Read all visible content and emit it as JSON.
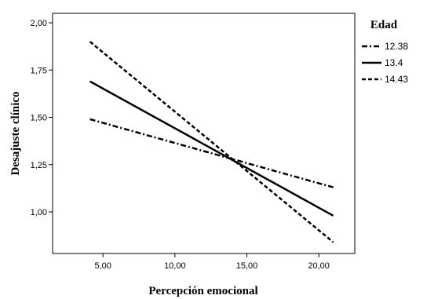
{
  "chart_data": {
    "type": "line",
    "xlabel": "Percepción emocional",
    "ylabel": "Desajuste clínico",
    "xlim": [
      1.5,
      22.5
    ],
    "ylim": [
      0.78,
      2.05
    ],
    "xticks": [
      5,
      10,
      15,
      20
    ],
    "xtick_labels": [
      "5,00",
      "10,00",
      "15,00",
      "20,00"
    ],
    "yticks": [
      1.0,
      1.25,
      1.5,
      1.75,
      2.0
    ],
    "ytick_labels": [
      "1,00",
      "1,25",
      "1,50",
      "1,75",
      "2,00"
    ],
    "grid": false,
    "legend": {
      "title": "Edad",
      "position": "right"
    },
    "series": [
      {
        "name": "12.38",
        "dash": "dash-dot",
        "x": [
          4.1,
          21.0
        ],
        "y": [
          1.49,
          1.13
        ]
      },
      {
        "name": "13.4",
        "dash": "solid",
        "x": [
          4.1,
          21.0
        ],
        "y": [
          1.69,
          0.98
        ]
      },
      {
        "name": "14.43",
        "dash": "dashed",
        "x": [
          4.1,
          21.0
        ],
        "y": [
          1.9,
          0.84
        ]
      }
    ]
  }
}
